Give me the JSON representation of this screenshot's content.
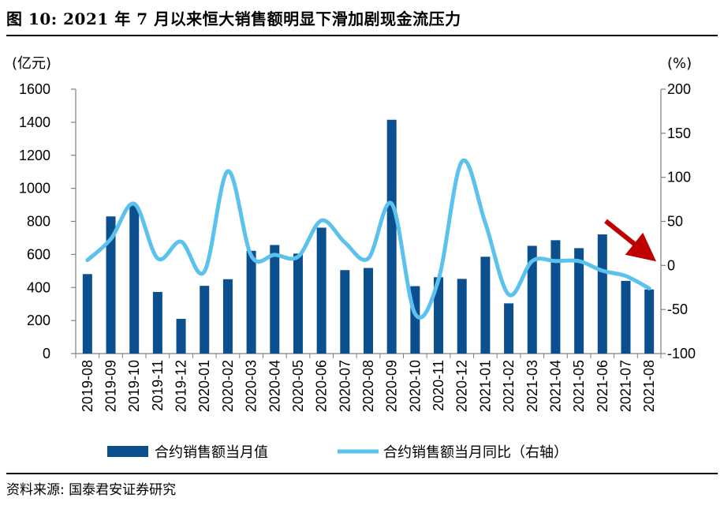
{
  "header": {
    "title": "图 10:  2021 年 7 月以来恒大销售额明显下滑加剧现金流压力"
  },
  "footer": {
    "source": "资料来源:  国泰君安证券研究"
  },
  "colors": {
    "bar": "#0b4f8f",
    "line": "#5bc2ee",
    "arrow": "#c00000",
    "axis": "#7f7f7f"
  },
  "chart_data": {
    "type": "bar",
    "left_unit": "(亿元)",
    "right_unit": "(%)",
    "categories": [
      "2019-08",
      "2019-09",
      "2019-10",
      "2019-11",
      "2019-12",
      "2020-01",
      "2020-02",
      "2020-03",
      "2020-04",
      "2020-05",
      "2020-06",
      "2020-07",
      "2020-08",
      "2020-09",
      "2020-10",
      "2020-11",
      "2020-12",
      "2021-01",
      "2021-02",
      "2021-03",
      "2021-04",
      "2021-05",
      "2021-06",
      "2021-07",
      "2021-08"
    ],
    "ylim": [
      0,
      1600
    ],
    "yticks": [
      "0",
      "200",
      "400",
      "600",
      "800",
      "1000",
      "1200",
      "1400",
      "1600"
    ],
    "ylim_right": [
      -100,
      200
    ],
    "yticks_right": [
      "-100",
      "-50",
      "0",
      "50",
      "100",
      "150",
      "200"
    ],
    "series": [
      {
        "name": "合约销售额当月值",
        "type": "bar",
        "axis": "left",
        "values": [
          481,
          830,
          895,
          373,
          210,
          410,
          450,
          622,
          657,
          605,
          762,
          505,
          518,
          1415,
          408,
          462,
          452,
          586,
          304,
          652,
          686,
          638,
          721,
          440,
          388
        ]
      },
      {
        "name": "合约销售额当月同比（右轴）",
        "type": "line",
        "axis": "right",
        "values": [
          6,
          30,
          70,
          8,
          27,
          -7,
          107,
          11,
          12,
          10,
          51,
          26,
          8,
          70,
          -55,
          -16,
          118,
          48,
          -33,
          5,
          5,
          5,
          -6,
          -12,
          -26
        ]
      }
    ],
    "legend_position": "bottom"
  }
}
